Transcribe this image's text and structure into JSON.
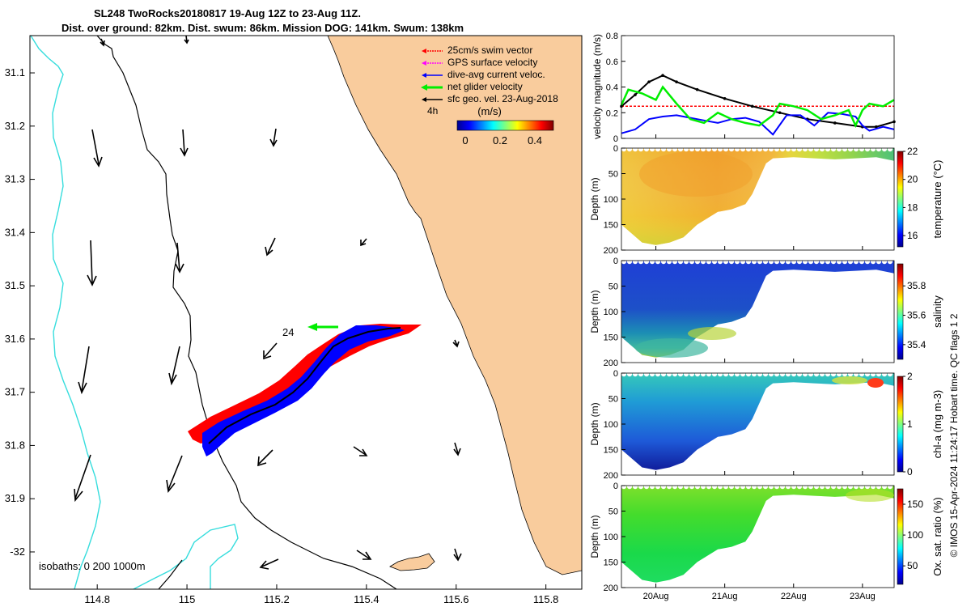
{
  "header": {
    "title_line1": "SL248 TwoRocks20180817 19-Aug 12Z to 23-Aug 11Z.",
    "title_line2": "Dist. over ground: 82km. Dist. swum: 86km. Mission DOG: 141km. Swum: 138km"
  },
  "chart_data": [
    {
      "type": "map",
      "name": "glider track map",
      "x_ticks": [
        "114.8",
        "115",
        "115.2",
        "115.4",
        "115.6",
        "115.8"
      ],
      "x_tick_values": [
        114.8,
        115.0,
        115.2,
        115.4,
        115.6,
        115.8
      ],
      "y_ticks": [
        "31.1",
        "31.2",
        "31.3",
        "31.4",
        "31.5",
        "31.6",
        "31.7",
        "31.8",
        "31.9",
        "-32"
      ],
      "y_tick_values": [
        -31.1,
        -31.2,
        -31.3,
        -31.4,
        -31.5,
        -31.6,
        -31.7,
        -31.8,
        -31.9,
        -32.0
      ],
      "xlim": [
        114.65,
        115.88
      ],
      "ylim": [
        -32.07,
        -31.03
      ],
      "legend": [
        {
          "label": "25cm/s swim vector",
          "color": "#ff0000"
        },
        {
          "label": "GPS surface velocity",
          "color": "#ff00ff"
        },
        {
          "label": "dive-avg current veloc.",
          "color": "#0000ff"
        },
        {
          "label": "net glider velocity",
          "color": "#00ee00"
        },
        {
          "label": "sfc geo. vel. 23-Aug-2018",
          "color": "#000000"
        }
      ],
      "legend_position": "top-right",
      "scale_label": "4h",
      "colorbar": {
        "label": "(m/s)",
        "ticks": [
          "0",
          "0.2",
          "0.4"
        ],
        "range": [
          0,
          0.5
        ]
      },
      "annotations": {
        "time_label": "24",
        "isobaths": "isobaths: 0   200  1000m"
      },
      "colors": {
        "land": "#f9cc9d",
        "isobath_1000": "#33dddd",
        "isobath_200": "#000000"
      }
    },
    {
      "type": "line",
      "name": "velocity magnitude",
      "ylabel": "velocity magnitude (m/s)",
      "ylim": [
        0,
        0.8
      ],
      "y_ticks": [
        "0",
        "0.2",
        "0.4",
        "0.6",
        "0.8"
      ],
      "x_ticks": [
        "20Aug",
        "21Aug",
        "22Aug",
        "23Aug"
      ],
      "x_day_range": [
        19.5,
        23.46
      ],
      "series": [
        {
          "name": "swim speed",
          "color": "#ff0000",
          "x": [
            19.5,
            20.0,
            20.5,
            21.0,
            21.5,
            22.0,
            22.5,
            23.0,
            23.46
          ],
          "values": [
            0.25,
            0.25,
            0.25,
            0.25,
            0.25,
            0.25,
            0.25,
            0.25,
            0.25
          ]
        },
        {
          "name": "sfc geo. velocity",
          "color": "#000000",
          "x": [
            19.5,
            19.7,
            19.9,
            20.1,
            20.3,
            20.6,
            21.0,
            21.4,
            21.8,
            22.2,
            22.6,
            23.0,
            23.2,
            23.46
          ],
          "values": [
            0.25,
            0.34,
            0.44,
            0.49,
            0.44,
            0.38,
            0.31,
            0.25,
            0.2,
            0.15,
            0.12,
            0.09,
            0.09,
            0.13
          ]
        },
        {
          "name": "dive-avg current",
          "color": "#0000ff",
          "x": [
            19.5,
            19.7,
            19.9,
            20.1,
            20.3,
            20.5,
            20.7,
            20.9,
            21.1,
            21.3,
            21.5,
            21.7,
            21.9,
            22.1,
            22.3,
            22.5,
            22.7,
            22.9,
            23.0,
            23.1,
            23.3,
            23.46
          ],
          "values": [
            0.04,
            0.07,
            0.15,
            0.17,
            0.18,
            0.16,
            0.14,
            0.12,
            0.15,
            0.16,
            0.13,
            0.03,
            0.18,
            0.18,
            0.1,
            0.2,
            0.19,
            0.17,
            0.1,
            0.06,
            0.09,
            0.07
          ]
        },
        {
          "name": "net glider velocity",
          "color": "#00ee00",
          "x": [
            19.5,
            19.6,
            19.8,
            20.0,
            20.1,
            20.3,
            20.5,
            20.7,
            20.9,
            21.1,
            21.3,
            21.5,
            21.7,
            21.8,
            22.0,
            22.2,
            22.4,
            22.6,
            22.8,
            22.9,
            23.0,
            23.1,
            23.3,
            23.46
          ],
          "values": [
            0.26,
            0.38,
            0.35,
            0.3,
            0.4,
            0.27,
            0.15,
            0.12,
            0.2,
            0.15,
            0.12,
            0.1,
            0.18,
            0.27,
            0.25,
            0.22,
            0.15,
            0.18,
            0.22,
            0.1,
            0.22,
            0.27,
            0.25,
            0.3
          ]
        }
      ]
    },
    {
      "type": "heatmap",
      "name": "temperature section",
      "ylabel": "Depth (m)",
      "y_ticks": [
        "0",
        "50",
        "100",
        "150",
        "200"
      ],
      "ylim": [
        200,
        0
      ],
      "colorbar": {
        "label": "temperature (°C)",
        "ticks": [
          "16",
          "18",
          "20",
          "22"
        ],
        "range": [
          15.2,
          22
        ]
      },
      "x_day_range": [
        19.5,
        23.46
      ],
      "profile_bottom_x": [
        19.5,
        19.8,
        20.0,
        20.2,
        20.4,
        20.6,
        20.9,
        21.1,
        21.3,
        21.4,
        21.6,
        21.7,
        22.0,
        22.3,
        22.6,
        22.9,
        23.2,
        23.46
      ],
      "profile_bottom_depth": [
        150,
        185,
        190,
        185,
        175,
        150,
        125,
        120,
        110,
        90,
        30,
        20,
        18,
        20,
        22,
        20,
        18,
        25
      ]
    },
    {
      "type": "heatmap",
      "name": "salinity section",
      "ylabel": "Depth (m)",
      "y_ticks": [
        "0",
        "50",
        "100",
        "150",
        "200"
      ],
      "ylim": [
        200,
        0
      ],
      "colorbar": {
        "label": "salinity",
        "ticks": [
          "35.4",
          "35.6",
          "35.8"
        ],
        "range": [
          35.3,
          35.95
        ]
      },
      "x_day_range": [
        19.5,
        23.46
      ],
      "profile_bottom_x": [
        19.5,
        19.8,
        20.0,
        20.2,
        20.4,
        20.6,
        20.9,
        21.1,
        21.3,
        21.4,
        21.6,
        21.7,
        22.0,
        22.3,
        22.6,
        22.9,
        23.2,
        23.46
      ],
      "profile_bottom_depth": [
        150,
        185,
        190,
        185,
        175,
        150,
        125,
        120,
        110,
        90,
        30,
        20,
        18,
        20,
        22,
        20,
        18,
        25
      ]
    },
    {
      "type": "heatmap",
      "name": "chlorophyll section",
      "ylabel": "Depth (m)",
      "y_ticks": [
        "0",
        "50",
        "100",
        "150",
        "200"
      ],
      "ylim": [
        200,
        0
      ],
      "colorbar": {
        "label": "chl-a (mg m-3)",
        "ticks": [
          "0",
          "1",
          "2"
        ],
        "range": [
          0,
          2
        ]
      },
      "x_day_range": [
        19.5,
        23.46
      ],
      "profile_bottom_x": [
        19.5,
        19.8,
        20.0,
        20.2,
        20.4,
        20.6,
        20.9,
        21.1,
        21.3,
        21.4,
        21.6,
        21.7,
        22.0,
        22.3,
        22.6,
        22.9,
        23.2,
        23.46
      ],
      "profile_bottom_depth": [
        150,
        185,
        190,
        185,
        175,
        150,
        125,
        120,
        110,
        90,
        30,
        20,
        18,
        20,
        22,
        20,
        18,
        25
      ]
    },
    {
      "type": "heatmap",
      "name": "oxygen section",
      "ylabel": "Depth (m)",
      "y_ticks": [
        "0",
        "50",
        "100",
        "150",
        "200"
      ],
      "ylim": [
        200,
        0
      ],
      "colorbar": {
        "label": "Ox. sat. ratio (%)",
        "ticks": [
          "50",
          "100",
          "150"
        ],
        "range": [
          20,
          175
        ]
      },
      "x_ticks": [
        "20Aug",
        "21Aug",
        "22Aug",
        "23Aug"
      ],
      "x_day_range": [
        19.5,
        23.46
      ],
      "profile_bottom_x": [
        19.5,
        19.8,
        20.0,
        20.2,
        20.4,
        20.6,
        20.9,
        21.1,
        21.3,
        21.4,
        21.6,
        21.7,
        22.0,
        22.3,
        22.6,
        22.9,
        23.2,
        23.46
      ],
      "profile_bottom_depth": [
        150,
        185,
        190,
        185,
        175,
        150,
        125,
        120,
        110,
        90,
        30,
        20,
        18,
        20,
        22,
        20,
        18,
        25
      ]
    }
  ],
  "footer": {
    "credit": "© IMOS 15-Apr-2024 11:24:17 Hobart time. QC flags 1  2"
  }
}
